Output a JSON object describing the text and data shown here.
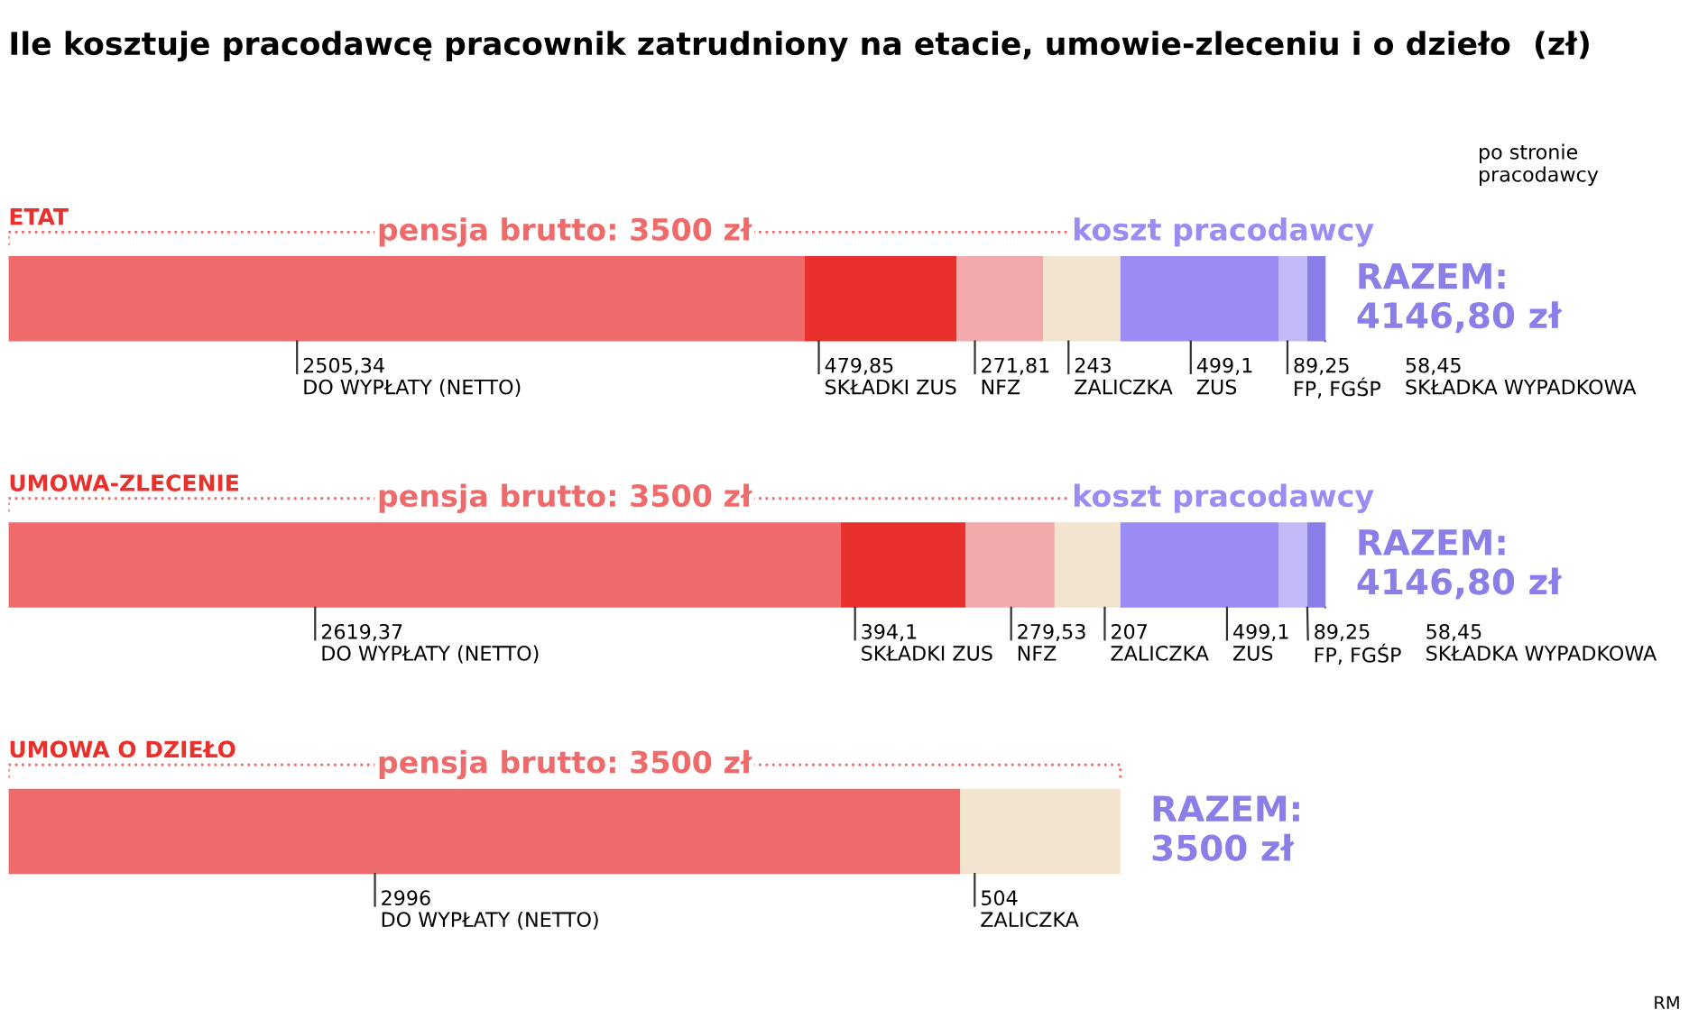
{
  "chart_data": {
    "type": "bar",
    "orientation": "horizontal",
    "stacked": true,
    "title": "Ile kosztuje pracodawcę pracownik zatrudniony na etacie, umowie-zleceniu i o dzieło  (zł)",
    "categories": [
      "ETAT",
      "UMOWA-ZLECENIE",
      "UMOWA O DZIEŁO"
    ],
    "series": [
      {
        "name": "DO WYPŁATY (NETTO)",
        "color": "#ef6a6a",
        "values": [
          2505.34,
          2619.37,
          2996
        ],
        "value_labels": [
          "2505,34",
          "2619,37",
          "2996"
        ]
      },
      {
        "name": "SKŁADKI ZUS",
        "color": "#e8312c",
        "values": [
          479.85,
          394.1,
          null
        ],
        "value_labels": [
          "479,85",
          "394,1",
          null
        ]
      },
      {
        "name": "NFZ",
        "color": "#f2aaac",
        "values": [
          271.81,
          279.53,
          null
        ],
        "value_labels": [
          "271,81",
          "279,53",
          null
        ]
      },
      {
        "name": "ZALICZKA",
        "color": "#f3e4cf",
        "values": [
          243,
          207,
          504
        ],
        "value_labels": [
          "243",
          "207",
          "504"
        ]
      },
      {
        "name": "ZUS",
        "color": "#9a8cf2",
        "values": [
          499.1,
          499.1,
          null
        ],
        "value_labels": [
          "499,1",
          "499,1",
          null
        ]
      },
      {
        "name": "FP, FGŚP",
        "color": "#c2bbf7",
        "values": [
          89.25,
          89.25,
          null
        ],
        "value_labels": [
          "89,25",
          "89,25",
          null
        ]
      },
      {
        "name": "SKŁADKA WYPADKOWA",
        "color": "#8a7ee8",
        "values": [
          58.45,
          58.45,
          null
        ],
        "value_labels": [
          "58,45",
          "58,45",
          null
        ]
      }
    ],
    "totals": [
      "RAZEM: 4146,80 zł",
      "RAZEM: 4146,80 zł",
      "RAZEM: 3500 zł"
    ],
    "annotations": [
      "pensja brutto: 3500 zł",
      "koszt pracodawcy",
      "pensja brutto: 3500 zł",
      "koszt pracodawcy",
      "pensja brutto: 3500 zł",
      "po stronie pracodawcy",
      "RM"
    ],
    "legend": false
  }
}
